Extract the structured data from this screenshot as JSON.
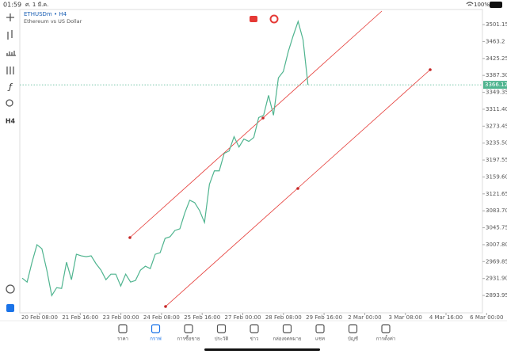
{
  "status_bar": {
    "time": "01:59",
    "date": "ศ. 1 มี.ค.",
    "battery": "100%"
  },
  "chart": {
    "type": "line",
    "symbol": "ETHUSDm • H4",
    "description": "Ethereum vs US Dollar",
    "timeframe_button": "H4",
    "color": "#4fb48f",
    "ylim": [
      2855,
      3535
    ],
    "yticks": [
      3501.15,
      3463.2,
      3425.25,
      {
        "value": 3387.3,
        "label": "3387.30"
      },
      3349.35,
      {
        "value": 3311.4,
        "label": "3311.40"
      },
      3273.45,
      {
        "value": 3235.5,
        "label": "3235.50"
      },
      3197.55,
      {
        "value": 3159.6,
        "label": "3159.60"
      },
      3121.65,
      {
        "value": 3083.7,
        "label": "3083.70"
      },
      3045.75,
      {
        "value": 3007.8,
        "label": "3007.80"
      },
      2969.85,
      {
        "value": 2931.9,
        "label": "2931.90"
      },
      2893.95
    ],
    "xticks": [
      "20 Feb 08:00",
      "21 Feb 16:00",
      "23 Feb 00:00",
      "24 Feb 08:00",
      "25 Feb 16:00",
      "27 Feb 00:00",
      "28 Feb 08:00",
      "29 Feb 16:00",
      "2 Mar 00:00",
      "3 Mar 08:00",
      "4 Mar 16:00",
      "6 Mar 00:00"
    ],
    "current_price": 3366.12,
    "values": [
      2932.8,
      2923.9,
      2968.5,
      3007.6,
      2998.7,
      2950.6,
      2893.6,
      2911.4,
      2909.7,
      2968.5,
      2929.3,
      2986.3,
      2982.7,
      2980.9,
      2982.7,
      2964.9,
      2950.6,
      2929.3,
      2941.7,
      2941.7,
      2915.0,
      2941.7,
      2923.9,
      2927.5,
      2950.6,
      2959.5,
      2954.2,
      2986.3,
      2989.8,
      3021.9,
      3025.5,
      3039.7,
      3043.3,
      3078.9,
      3107.4,
      3102.1,
      3084.3,
      3057.5,
      3143.0,
      3173.3,
      3173.3,
      3212.5,
      3217.9,
      3249.9,
      3226.8,
      3244.6,
      3239.3,
      3248.2,
      3292.7,
      3298.0,
      3342.6,
      3298.0,
      3381.8,
      3396.0,
      3440.6,
      3476.2,
      3508.3,
      3467.3,
      3366.12
    ]
  },
  "tabs": [
    {
      "label": "ราคา",
      "active": false
    },
    {
      "label": "กราฟ",
      "active": true
    },
    {
      "label": "การซื้อขาย",
      "active": false
    },
    {
      "label": "ประวัติ",
      "active": false
    },
    {
      "label": "ข่าว",
      "active": false
    },
    {
      "label": "กล่องจดหมาย",
      "active": false
    },
    {
      "label": "แชท",
      "active": false
    },
    {
      "label": "บัญชี",
      "active": false
    },
    {
      "label": "การตั้งค่า",
      "active": false
    }
  ]
}
